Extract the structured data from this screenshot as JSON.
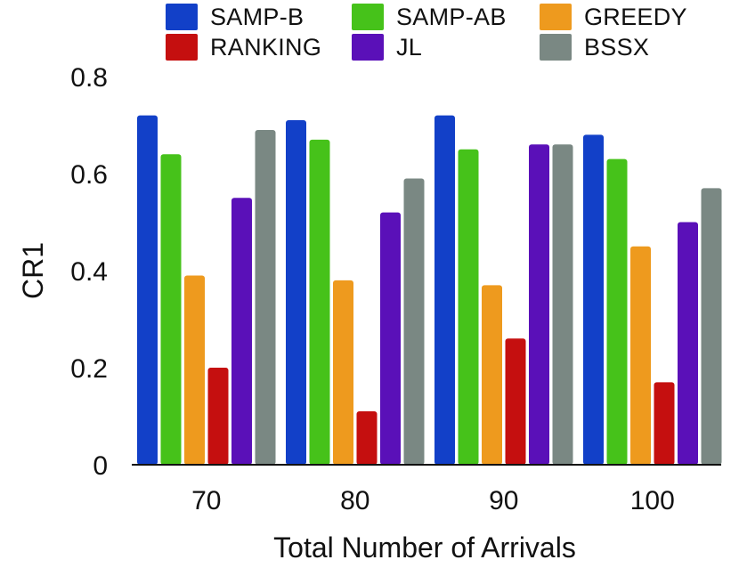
{
  "chart_data": {
    "type": "bar",
    "title": "",
    "xlabel": "Total Number of Arrivals",
    "ylabel": "CR1",
    "categories": [
      "70",
      "80",
      "90",
      "100"
    ],
    "ylim": [
      0,
      0.8
    ],
    "yticks": [
      "0",
      "0.2",
      "0.4",
      "0.6",
      "0.8"
    ],
    "yticks_values": [
      0,
      0.2,
      0.4,
      0.6,
      0.8
    ],
    "grid": false,
    "legend_position": "top",
    "series": [
      {
        "name": "SAMP-B",
        "color": "#1240C8",
        "values": [
          0.72,
          0.71,
          0.72,
          0.68
        ]
      },
      {
        "name": "SAMP-AB",
        "color": "#46C21A",
        "values": [
          0.64,
          0.67,
          0.65,
          0.63
        ]
      },
      {
        "name": "GREEDY",
        "color": "#EE9A1E",
        "values": [
          0.39,
          0.38,
          0.37,
          0.45
        ]
      },
      {
        "name": "RANKING",
        "color": "#C50F0F",
        "values": [
          0.2,
          0.11,
          0.26,
          0.17
        ]
      },
      {
        "name": "JL",
        "color": "#5A10B8",
        "values": [
          0.55,
          0.52,
          0.66,
          0.5
        ]
      },
      {
        "name": "BSSX",
        "color": "#7A8883",
        "values": [
          0.69,
          0.59,
          0.66,
          0.57
        ]
      }
    ]
  }
}
